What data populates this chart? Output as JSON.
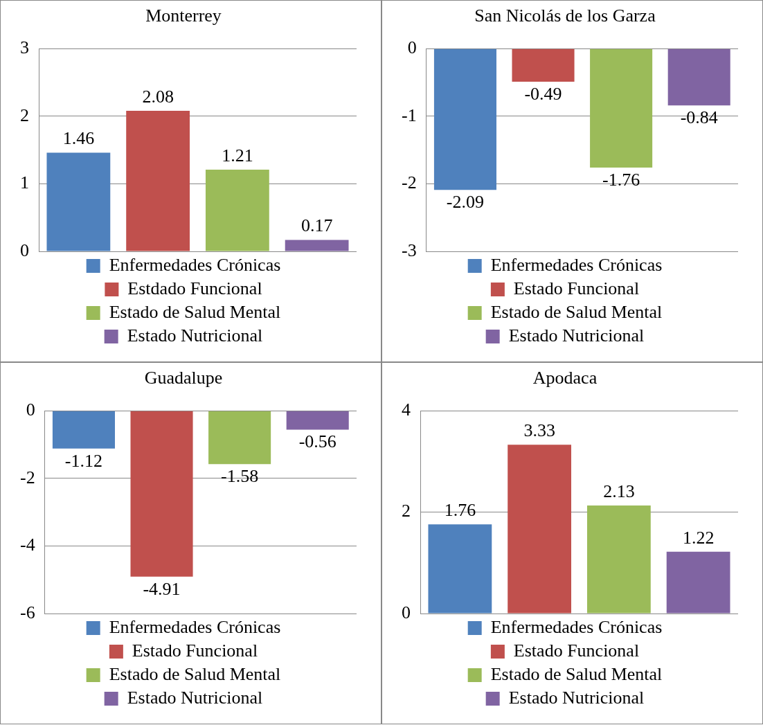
{
  "chart_data": [
    {
      "type": "bar",
      "title": "Monterrey",
      "categories": [
        null
      ],
      "series": [
        {
          "name": "Enfermedades Crónicas",
          "color": "#4f81bd",
          "values": [
            1.46
          ]
        },
        {
          "name": "Estdado Funcional",
          "color": "#c0504d",
          "values": [
            2.08
          ]
        },
        {
          "name": "Estado de Salud Mental",
          "color": "#9bbb59",
          "values": [
            1.21
          ]
        },
        {
          "name": "Estado Nutricional",
          "color": "#8064a2",
          "values": [
            0.17
          ]
        }
      ],
      "ylim": [
        0,
        3
      ],
      "yticks": [
        0,
        1,
        2,
        3
      ],
      "grid": "y",
      "legend": "bottom",
      "data_labels": true,
      "tick_labels": "y"
    },
    {
      "type": "bar",
      "title": "San Nicolás de los Garza",
      "categories": [
        null
      ],
      "series": [
        {
          "name": "Enfermedades Crónicas",
          "color": "#4f81bd",
          "values": [
            -2.09
          ]
        },
        {
          "name": "Estado Funcional",
          "color": "#c0504d",
          "values": [
            -0.49
          ]
        },
        {
          "name": "Estado de Salud Mental",
          "color": "#9bbb59",
          "values": [
            -1.76
          ]
        },
        {
          "name": "Estado Nutricional",
          "color": "#8064a2",
          "values": [
            -0.84
          ]
        }
      ],
      "ylim": [
        -3,
        0
      ],
      "yticks": [
        -3,
        -2,
        -1,
        0
      ],
      "grid": "y",
      "legend": "bottom",
      "data_labels": true,
      "tick_labels": "y"
    },
    {
      "type": "bar",
      "title": "Guadalupe",
      "categories": [
        null
      ],
      "series": [
        {
          "name": "Enfermedades Crónicas",
          "color": "#4f81bd",
          "values": [
            -1.12
          ]
        },
        {
          "name": "Estado Funcional",
          "color": "#c0504d",
          "values": [
            -4.91
          ]
        },
        {
          "name": "Estado de Salud Mental",
          "color": "#9bbb59",
          "values": [
            -1.58
          ]
        },
        {
          "name": "Estado Nutricional",
          "color": "#8064a2",
          "values": [
            -0.56
          ]
        }
      ],
      "ylim": [
        -6,
        0
      ],
      "yticks": [
        -6,
        -4,
        -2,
        0
      ],
      "grid": "y",
      "legend": "bottom",
      "data_labels": true,
      "tick_labels": "y"
    },
    {
      "type": "bar",
      "title": "Apodaca",
      "categories": [
        null
      ],
      "series": [
        {
          "name": "Enfermedades Crónicas",
          "color": "#4f81bd",
          "values": [
            1.76
          ]
        },
        {
          "name": "Estado Funcional",
          "color": "#c0504d",
          "values": [
            3.33
          ]
        },
        {
          "name": "Estado de Salud Mental",
          "color": "#9bbb59",
          "values": [
            2.13
          ]
        },
        {
          "name": "Estado Nutricional",
          "color": "#8064a2",
          "values": [
            1.22
          ]
        }
      ],
      "ylim": [
        0,
        4
      ],
      "yticks": [
        0,
        2,
        4
      ],
      "grid": "y",
      "legend": "bottom",
      "data_labels": true,
      "tick_labels": "y"
    }
  ]
}
